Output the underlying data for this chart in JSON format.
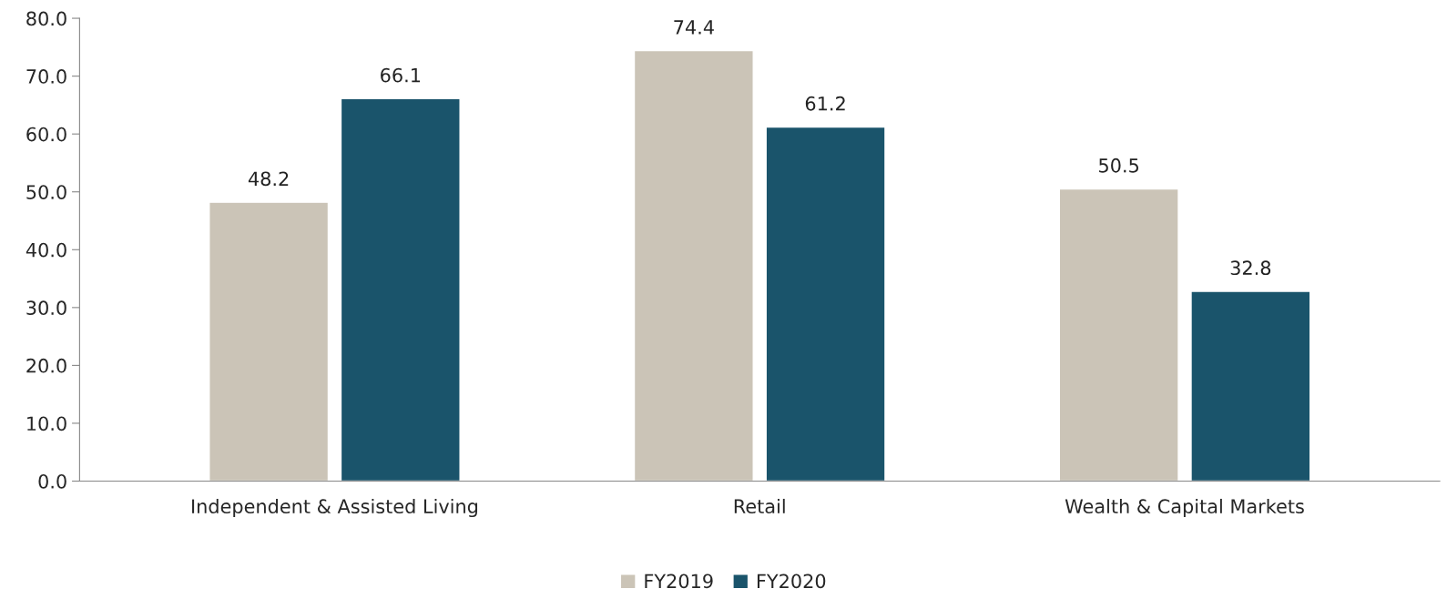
{
  "chart_data": {
    "type": "bar",
    "categories": [
      "Independent & Assisted Living",
      "Retail",
      "Wealth & Capital Markets"
    ],
    "series": [
      {
        "name": "FY2019",
        "color": "#cbc4b7",
        "values": [
          48.2,
          74.4,
          50.5
        ]
      },
      {
        "name": "FY2020",
        "color": "#1a546b",
        "values": [
          66.1,
          61.2,
          32.8
        ]
      }
    ],
    "ylim": [
      0,
      80
    ],
    "yticks": [
      {
        "value": 0,
        "label": "0.0"
      },
      {
        "value": 10,
        "label": "10.0"
      },
      {
        "value": 20,
        "label": "20.0"
      },
      {
        "value": 30,
        "label": "30.0"
      },
      {
        "value": 40,
        "label": "40.0"
      },
      {
        "value": 50,
        "label": "50.0"
      },
      {
        "value": 60,
        "label": "60.0"
      },
      {
        "value": 70,
        "label": "70.0"
      },
      {
        "value": 80,
        "label": "80.0"
      }
    ],
    "data_labels": true,
    "grid": false,
    "legend": "bottom"
  }
}
